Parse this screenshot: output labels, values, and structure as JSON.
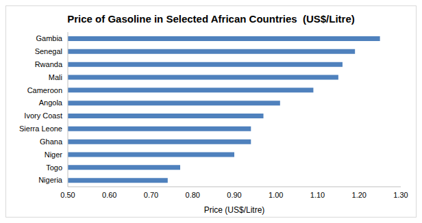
{
  "chart_data": {
    "type": "bar",
    "title": "Price of Gasoline in Selected African Countries  (US$/Litre)",
    "orientation": "horizontal",
    "categories": [
      "Gambia",
      "Senegal",
      "Rwanda",
      "Mali",
      "Cameroon",
      "Angola",
      "Ivory Coast",
      "Sierra Leone",
      "Ghana",
      "Niger",
      "Togo",
      "Nigeria"
    ],
    "values": [
      1.25,
      1.19,
      1.16,
      1.15,
      1.09,
      1.01,
      0.97,
      0.94,
      0.94,
      0.9,
      0.77,
      0.74
    ],
    "color": "#4f81bd",
    "xlabel": "Price (US$/Litre)",
    "xlim": [
      0.5,
      1.3
    ],
    "xticks": [
      {
        "value": 0.5,
        "label": "0.50"
      },
      {
        "value": 0.6,
        "label": "0.60"
      },
      {
        "value": 0.7,
        "label": "0.70"
      },
      {
        "value": 0.8,
        "label": "0.80"
      },
      {
        "value": 0.9,
        "label": "0.90"
      },
      {
        "value": 1.0,
        "label": "1.00"
      },
      {
        "value": 1.1,
        "label": "1.10"
      },
      {
        "value": 1.2,
        "label": "1.20"
      },
      {
        "value": 1.3,
        "label": "1.30"
      }
    ],
    "grid": false
  }
}
